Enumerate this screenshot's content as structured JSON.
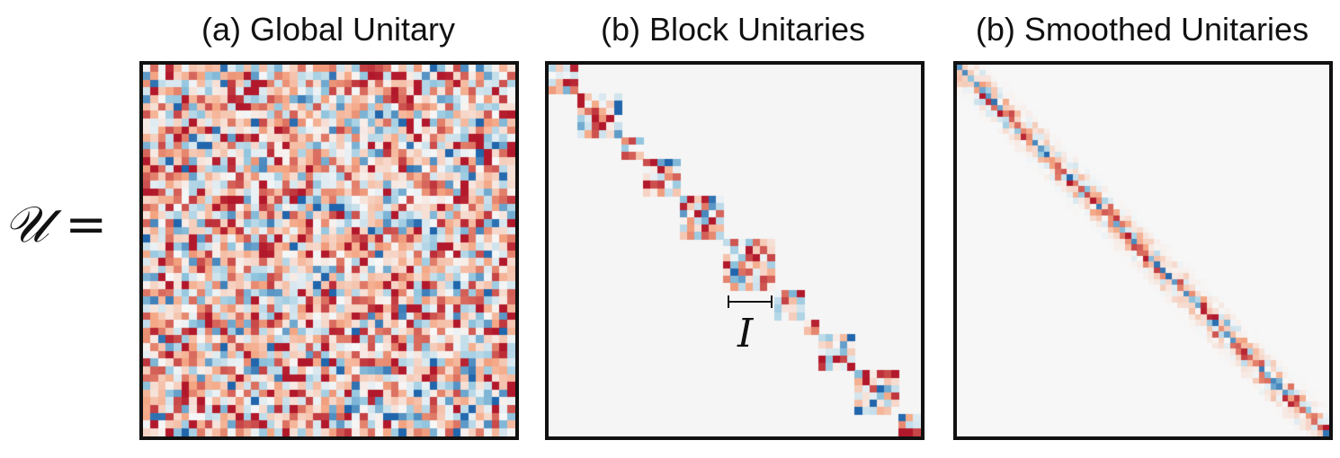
{
  "equation_label": "𝒰 =",
  "panels": [
    {
      "title": "(a)  Global Unitary",
      "kind": "global",
      "grid_size": 48
    },
    {
      "title": "(b) Block Unitaries",
      "kind": "block",
      "block_sizes": [
        4,
        6,
        3,
        5,
        6,
        7,
        4,
        2,
        5,
        6,
        3
      ]
    },
    {
      "title": "(b) Smoothed Unitaries",
      "kind": "smoothed",
      "grid_size": 64
    }
  ],
  "annotation": {
    "label": "I"
  },
  "colors": {
    "background": "#f5f5f5",
    "frame": "#111111",
    "negative": "#2166ac",
    "positive": "#b2182b"
  }
}
